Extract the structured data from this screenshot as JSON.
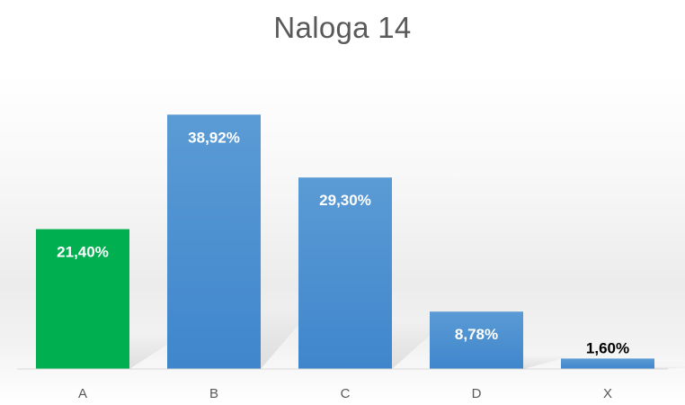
{
  "chart_data": {
    "type": "bar",
    "title": "Naloga 14",
    "categories": [
      "A",
      "B",
      "C",
      "D",
      "X"
    ],
    "values": [
      21.4,
      38.92,
      29.3,
      8.78,
      1.6
    ],
    "value_labels": [
      "21,40%",
      "38,92%",
      "29,30%",
      "8,78%",
      "1,60%"
    ],
    "colors": [
      "#00b050",
      "#4a90d9",
      "#4a90d9",
      "#4a90d9",
      "#4a90d9"
    ],
    "label_colors": [
      "#ffffff",
      "#ffffff",
      "#ffffff",
      "#ffffff",
      "#000000"
    ],
    "ylim": [
      0,
      42
    ],
    "grid": false,
    "legend": "none"
  }
}
